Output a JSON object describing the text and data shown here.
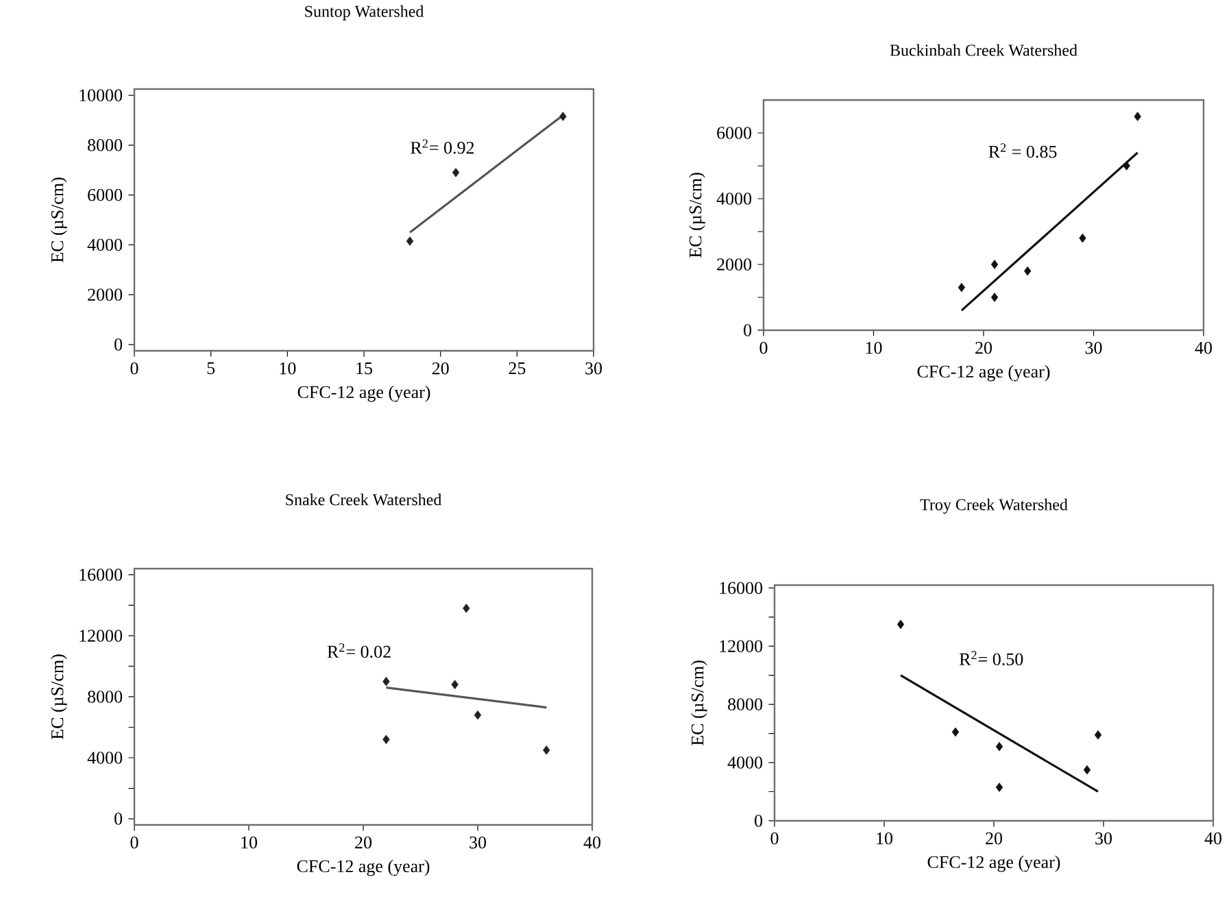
{
  "chart_data": [
    {
      "type": "scatter",
      "title": "Suntop Watershed",
      "xlabel": "CFC-12 age (year)",
      "ylabel": "EC (µS/cm)",
      "xlim": [
        0,
        30
      ],
      "xticks": [
        0,
        5,
        10,
        15,
        20,
        25,
        30
      ],
      "ylim": [
        -250,
        10250
      ],
      "yticks": [
        0,
        2000,
        4000,
        6000,
        8000,
        10000
      ],
      "grid": false,
      "annotations": [
        "R$^{2}$= 0.92"
      ],
      "series": [
        {
          "color": "#222222",
          "marker": "diamond",
          "x": [
            18,
            21,
            28
          ],
          "values": [
            4150,
            6900,
            9150
          ]
        },
        {
          "type": "line",
          "color": "#555555",
          "x": [
            18,
            28
          ],
          "values": [
            4500,
            9200
          ]
        }
      ]
    },
    {
      "type": "scatter",
      "title": "Buckinbah Creek Watershed",
      "xlabel": "CFC-12 age (year)",
      "ylabel": "EC (µS/cm)",
      "xlim": [
        0,
        40
      ],
      "xticks": [
        0,
        10,
        20,
        30,
        40
      ],
      "ylim": [
        0,
        7000
      ],
      "yticks": [
        0,
        {
          "value": 1000,
          "label": null
        },
        2000,
        {
          "value": 3000,
          "label": null
        },
        4000,
        {
          "value": 5000,
          "label": null
        },
        6000
      ],
      "grid": false,
      "annotations": [
        "R$^{2}$ = 0.85"
      ],
      "series": [
        {
          "color": "#111111",
          "marker": "diamond",
          "x": [
            18,
            21,
            21,
            24,
            29,
            33,
            34
          ],
          "values": [
            1300,
            2000,
            1000,
            1800,
            2800,
            5000,
            6500
          ]
        },
        {
          "type": "line",
          "color": "#111111",
          "x": [
            18,
            34
          ],
          "values": [
            600,
            5400
          ]
        }
      ]
    },
    {
      "type": "scatter",
      "title": "Snake Creek Watershed",
      "xlabel": "CFC-12 age (year)",
      "ylabel": "EC (µS/cm)",
      "xlim": [
        0,
        40
      ],
      "xticks": [
        0,
        10,
        20,
        30,
        40
      ],
      "ylim": [
        -400,
        16400
      ],
      "yticks": [
        0,
        {
          "value": 2000,
          "label": null
        },
        4000,
        {
          "value": 6000,
          "label": null
        },
        8000,
        {
          "value": 10000,
          "label": null
        },
        12000,
        {
          "value": 14000,
          "label": null
        },
        16000
      ],
      "grid": false,
      "annotations": [
        "R$^{2}$= 0.02"
      ],
      "series": [
        {
          "color": "#222222",
          "marker": "diamond",
          "x": [
            22,
            22,
            28,
            29,
            30,
            36
          ],
          "values": [
            9000,
            5200,
            8800,
            13800,
            6800,
            4500
          ]
        },
        {
          "type": "line",
          "color": "#555555",
          "x": [
            22,
            36
          ],
          "values": [
            8600,
            7300
          ]
        }
      ]
    },
    {
      "type": "scatter",
      "title": "Troy Creek Watershed",
      "xlabel": "CFC-12 age (year)",
      "ylabel": "EC (µS/cm)",
      "xlim": [
        0,
        40
      ],
      "xticks": [
        0,
        10,
        20,
        30,
        40
      ],
      "ylim": [
        0,
        16200
      ],
      "yticks": [
        0,
        {
          "value": 2000,
          "label": null
        },
        4000,
        {
          "value": 6000,
          "label": null
        },
        8000,
        {
          "value": 10000,
          "label": null
        },
        12000,
        {
          "value": 14000,
          "label": null
        },
        16000
      ],
      "grid": false,
      "annotations": [
        "R$^{2}$= 0.50"
      ],
      "series": [
        {
          "color": "#111111",
          "marker": "diamond",
          "x": [
            11.5,
            16.5,
            20.5,
            20.5,
            28.5,
            29.5
          ],
          "values": [
            13500,
            6100,
            5100,
            2300,
            3500,
            5900
          ]
        },
        {
          "type": "line",
          "color": "#111111",
          "x": [
            11.5,
            29.5
          ],
          "values": [
            10000,
            2000
          ]
        }
      ]
    }
  ]
}
